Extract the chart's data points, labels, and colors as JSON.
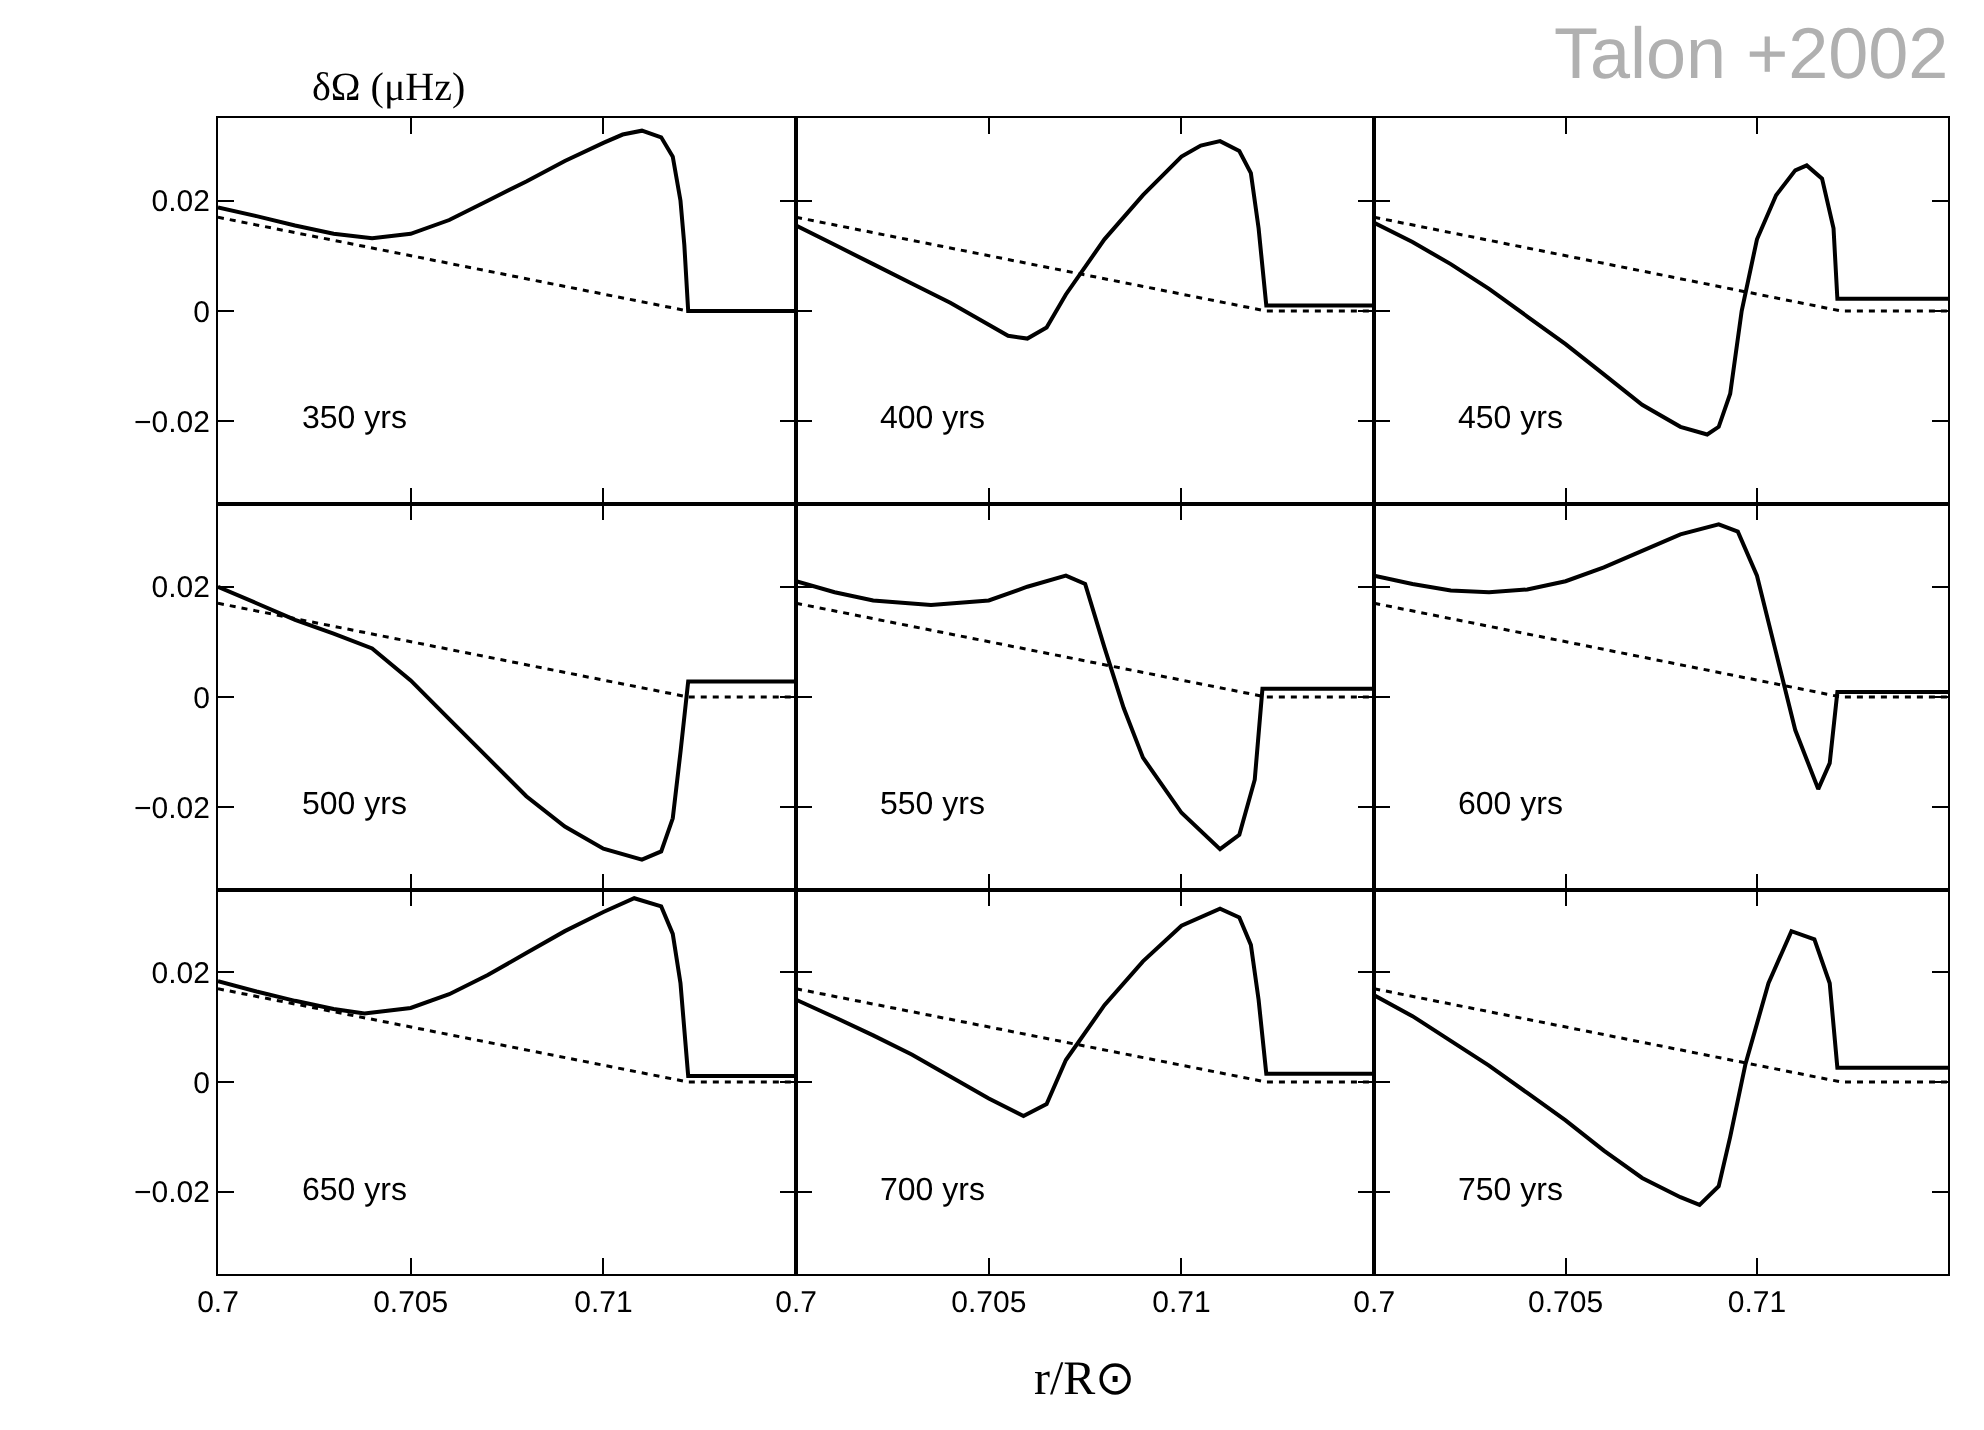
{
  "chart_data": [
    {
      "type": "line",
      "ylabel": "δΩ (μHz)",
      "annotations": [
        "350 yrs"
      ],
      "xlim": [
        0.7,
        0.715
      ],
      "ylim": [
        -0.035,
        0.035
      ],
      "xticks": [
        0.7,
        0.705,
        0.71
      ],
      "yticks": [
        -0.02,
        0,
        0.02
      ],
      "tick_labels": "y",
      "series": [
        {
          "color": "#000000",
          "line_style": "solid",
          "x": [
            0.7,
            0.701,
            0.702,
            0.703,
            0.704,
            0.705,
            0.706,
            0.707,
            0.708,
            0.709,
            0.71,
            0.7105,
            0.711,
            0.7115,
            0.7118,
            0.712,
            0.7121,
            0.7122,
            0.715
          ],
          "values": [
            0.0188,
            0.0172,
            0.0155,
            0.014,
            0.0132,
            0.014,
            0.0165,
            0.02,
            0.0235,
            0.0272,
            0.0305,
            0.032,
            0.0327,
            0.0315,
            0.028,
            0.02,
            0.012,
            0.0,
            0.0
          ]
        },
        {
          "color": "#000000",
          "line_style": "dotted",
          "x": [
            0.7,
            0.7122,
            0.715
          ],
          "values": [
            0.017,
            0.0,
            0.0
          ]
        }
      ]
    },
    {
      "type": "line",
      "annotations": [
        "400 yrs"
      ],
      "xlim": [
        0.7,
        0.715
      ],
      "ylim": [
        -0.035,
        0.035
      ],
      "xticks": [
        0.7,
        0.705,
        0.71
      ],
      "yticks": [
        -0.02,
        0,
        0.02
      ],
      "tick_labels": false,
      "series": [
        {
          "color": "#000000",
          "line_style": "solid",
          "x": [
            0.7,
            0.701,
            0.702,
            0.703,
            0.704,
            0.705,
            0.7055,
            0.706,
            0.7065,
            0.707,
            0.708,
            0.709,
            0.71,
            0.7105,
            0.711,
            0.7115,
            0.7118,
            0.712,
            0.7122,
            0.715
          ],
          "values": [
            0.0155,
            0.012,
            0.0085,
            0.005,
            0.0015,
            -0.0025,
            -0.0045,
            -0.005,
            -0.003,
            0.003,
            0.013,
            0.021,
            0.028,
            0.03,
            0.0308,
            0.029,
            0.025,
            0.015,
            0.001,
            0.001
          ]
        },
        {
          "color": "#000000",
          "line_style": "dotted",
          "x": [
            0.7,
            0.7122,
            0.715
          ],
          "values": [
            0.017,
            0.0,
            0.0
          ]
        }
      ]
    },
    {
      "type": "line",
      "annotations": [
        "450 yrs",
        "Talon +2002"
      ],
      "xlim": [
        0.7,
        0.715
      ],
      "ylim": [
        -0.035,
        0.035
      ],
      "xticks": [
        0.7,
        0.705,
        0.71
      ],
      "yticks": [
        -0.02,
        0,
        0.02
      ],
      "tick_labels": false,
      "series": [
        {
          "color": "#000000",
          "line_style": "solid",
          "x": [
            0.7,
            0.701,
            0.702,
            0.703,
            0.704,
            0.705,
            0.706,
            0.707,
            0.708,
            0.7087,
            0.709,
            0.7093,
            0.7096,
            0.71,
            0.7105,
            0.711,
            0.7113,
            0.7117,
            0.712,
            0.7121,
            0.715
          ],
          "values": [
            0.016,
            0.0125,
            0.0085,
            0.004,
            -0.001,
            -0.006,
            -0.0115,
            -0.017,
            -0.021,
            -0.0224,
            -0.021,
            -0.015,
            0.0,
            0.013,
            0.021,
            0.0255,
            0.0264,
            0.024,
            0.015,
            0.0022,
            0.0022
          ]
        },
        {
          "color": "#000000",
          "line_style": "dotted",
          "x": [
            0.7,
            0.7122,
            0.715
          ],
          "values": [
            0.017,
            0.0,
            0.0
          ]
        }
      ]
    },
    {
      "type": "line",
      "annotations": [
        "500 yrs"
      ],
      "xlim": [
        0.7,
        0.715
      ],
      "ylim": [
        -0.035,
        0.035
      ],
      "xticks": [
        0.7,
        0.705,
        0.71
      ],
      "yticks": [
        -0.02,
        0,
        0.02
      ],
      "tick_labels": "y",
      "series": [
        {
          "color": "#000000",
          "line_style": "solid",
          "x": [
            0.7,
            0.701,
            0.702,
            0.703,
            0.704,
            0.705,
            0.706,
            0.707,
            0.708,
            0.709,
            0.71,
            0.711,
            0.7115,
            0.7118,
            0.712,
            0.7122,
            0.715
          ],
          "values": [
            0.02,
            0.017,
            0.014,
            0.0115,
            0.0088,
            0.003,
            -0.004,
            -0.011,
            -0.018,
            -0.0235,
            -0.0275,
            -0.0295,
            -0.028,
            -0.022,
            -0.01,
            0.0028,
            0.0028
          ]
        },
        {
          "color": "#000000",
          "line_style": "dotted",
          "x": [
            0.7,
            0.7122,
            0.715
          ],
          "values": [
            0.017,
            0.0,
            0.0
          ]
        }
      ]
    },
    {
      "type": "line",
      "annotations": [
        "550 yrs"
      ],
      "xlim": [
        0.7,
        0.715
      ],
      "ylim": [
        -0.035,
        0.035
      ],
      "xticks": [
        0.7,
        0.705,
        0.71
      ],
      "yticks": [
        -0.02,
        0,
        0.02
      ],
      "tick_labels": false,
      "series": [
        {
          "color": "#000000",
          "line_style": "solid",
          "x": [
            0.7,
            0.701,
            0.702,
            0.7035,
            0.705,
            0.706,
            0.707,
            0.7075,
            0.708,
            0.7085,
            0.709,
            0.71,
            0.711,
            0.7115,
            0.7119,
            0.7121,
            0.715
          ],
          "values": [
            0.021,
            0.019,
            0.0175,
            0.0167,
            0.0175,
            0.02,
            0.022,
            0.0205,
            0.009,
            -0.002,
            -0.011,
            -0.021,
            -0.0276,
            -0.025,
            -0.015,
            0.0015,
            0.0015
          ]
        },
        {
          "color": "#000000",
          "line_style": "dotted",
          "x": [
            0.7,
            0.7122,
            0.715
          ],
          "values": [
            0.017,
            0.0,
            0.0
          ]
        }
      ]
    },
    {
      "type": "line",
      "annotations": [
        "600 yrs"
      ],
      "xlim": [
        0.7,
        0.715
      ],
      "ylim": [
        -0.035,
        0.035
      ],
      "xticks": [
        0.7,
        0.705,
        0.71
      ],
      "yticks": [
        -0.02,
        0,
        0.02
      ],
      "tick_labels": false,
      "series": [
        {
          "color": "#000000",
          "line_style": "solid",
          "x": [
            0.7,
            0.701,
            0.702,
            0.703,
            0.704,
            0.705,
            0.706,
            0.707,
            0.708,
            0.709,
            0.7095,
            0.71,
            0.7105,
            0.711,
            0.7116,
            0.7119,
            0.7121,
            0.715
          ],
          "values": [
            0.022,
            0.0205,
            0.0193,
            0.019,
            0.0195,
            0.021,
            0.0235,
            0.0265,
            0.0295,
            0.0313,
            0.03,
            0.022,
            0.008,
            -0.006,
            -0.0167,
            -0.012,
            0.0009,
            0.0009
          ]
        },
        {
          "color": "#000000",
          "line_style": "dotted",
          "x": [
            0.7,
            0.7122,
            0.715
          ],
          "values": [
            0.017,
            0.0,
            0.0
          ]
        }
      ]
    },
    {
      "type": "line",
      "annotations": [
        "650 yrs"
      ],
      "xlim": [
        0.7,
        0.715
      ],
      "ylim": [
        -0.035,
        0.035
      ],
      "xticks": [
        0.7,
        0.705,
        0.71
      ],
      "yticks": [
        -0.02,
        0,
        0.02
      ],
      "series": [
        {
          "color": "#000000",
          "line_style": "solid",
          "x": [
            0.7,
            0.701,
            0.702,
            0.703,
            0.7038,
            0.705,
            0.706,
            0.707,
            0.708,
            0.709,
            0.71,
            0.7108,
            0.7115,
            0.7118,
            0.712,
            0.7122,
            0.715
          ],
          "values": [
            0.0184,
            0.0165,
            0.0148,
            0.0133,
            0.0125,
            0.0135,
            0.016,
            0.0195,
            0.0235,
            0.0275,
            0.031,
            0.0335,
            0.032,
            0.027,
            0.018,
            0.0011,
            0.0011
          ]
        },
        {
          "color": "#000000",
          "line_style": "dotted",
          "x": [
            0.7,
            0.7122,
            0.715
          ],
          "values": [
            0.017,
            0.0,
            0.0
          ]
        }
      ]
    },
    {
      "type": "line",
      "xlabel": "r/R⊙",
      "annotations": [
        "700 yrs"
      ],
      "xlim": [
        0.7,
        0.715
      ],
      "ylim": [
        -0.035,
        0.035
      ],
      "xticks": [
        0.7,
        0.705,
        0.71
      ],
      "yticks": [
        -0.02,
        0,
        0.02
      ],
      "tick_labels": "x",
      "series": [
        {
          "color": "#000000",
          "line_style": "solid",
          "x": [
            0.7,
            0.701,
            0.702,
            0.703,
            0.704,
            0.705,
            0.7059,
            0.7065,
            0.707,
            0.708,
            0.709,
            0.71,
            0.711,
            0.7115,
            0.7118,
            0.712,
            0.7122,
            0.715
          ],
          "values": [
            0.015,
            0.0118,
            0.0085,
            0.005,
            0.001,
            -0.003,
            -0.0062,
            -0.004,
            0.004,
            0.014,
            0.022,
            0.0285,
            0.0316,
            0.03,
            0.025,
            0.015,
            0.0015,
            0.0015
          ]
        },
        {
          "color": "#000000",
          "line_style": "dotted",
          "x": [
            0.7,
            0.7122,
            0.715
          ],
          "values": [
            0.017,
            0.0,
            0.0
          ]
        }
      ]
    },
    {
      "type": "line",
      "annotations": [
        "750 yrs"
      ],
      "xlim": [
        0.7,
        0.715
      ],
      "ylim": [
        -0.035,
        0.035
      ],
      "xticks": [
        0.7,
        0.705,
        0.71
      ],
      "yticks": [
        -0.02,
        0,
        0.02
      ],
      "tick_labels": "x",
      "series": [
        {
          "color": "#000000",
          "line_style": "solid",
          "x": [
            0.7,
            0.701,
            0.702,
            0.703,
            0.704,
            0.705,
            0.706,
            0.707,
            0.708,
            0.7085,
            0.709,
            0.7093,
            0.7097,
            0.7103,
            0.7109,
            0.7115,
            0.7119,
            0.7121,
            0.715
          ],
          "values": [
            0.0158,
            0.012,
            0.0075,
            0.003,
            -0.002,
            -0.007,
            -0.0125,
            -0.0175,
            -0.021,
            -0.0224,
            -0.019,
            -0.01,
            0.0033,
            0.018,
            0.0275,
            0.026,
            0.018,
            0.0026,
            0.0026
          ]
        },
        {
          "color": "#000000",
          "line_style": "dotted",
          "x": [
            0.7,
            0.7122,
            0.715
          ],
          "values": [
            0.017,
            0.0,
            0.0
          ]
        }
      ]
    }
  ]
}
